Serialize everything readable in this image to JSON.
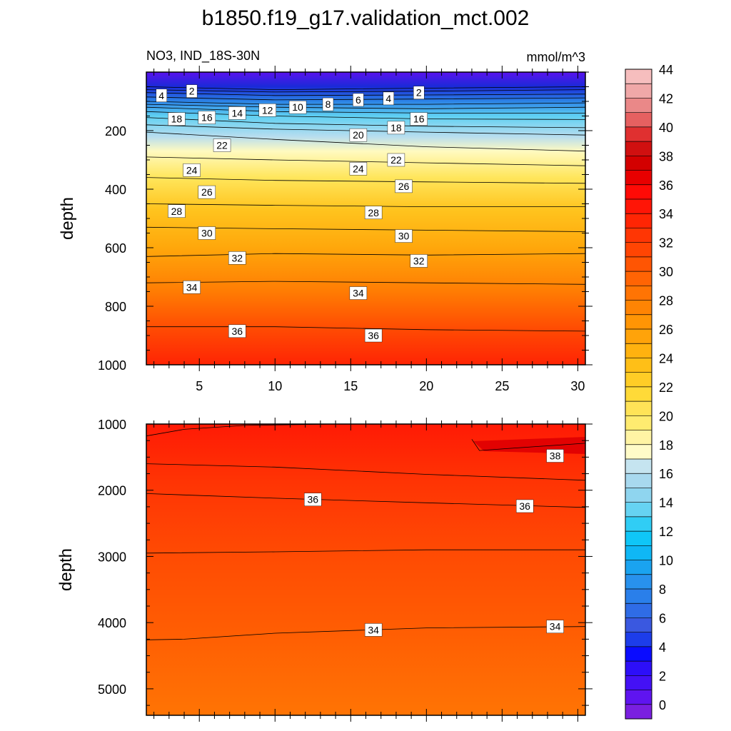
{
  "figure": {
    "title": "b1850.f19_g17.validation_mct.002",
    "subtitle_left": "NO3, IND_18S-30N",
    "subtitle_right": "mmol/m^3"
  },
  "chart_data": [
    {
      "type": "heatmap",
      "panel": "upper",
      "ylabel": "depth",
      "xlim": [
        1.5,
        30.5
      ],
      "ylim": [
        1000,
        0
      ],
      "xticks": [
        5,
        10,
        15,
        20,
        25,
        30
      ],
      "xtick_labels": [
        "5",
        "10",
        "15",
        "20",
        "25",
        "30"
      ],
      "yticks": [
        200,
        400,
        600,
        800,
        1000
      ],
      "ytick_labels": [
        "200",
        "400",
        "600",
        "800",
        "1000"
      ],
      "contour_lines": [
        {
          "level": 2,
          "points": [
            [
              1.5,
              50
            ],
            [
              10,
              60
            ],
            [
              20,
              55
            ],
            [
              30.5,
              50
            ]
          ]
        },
        {
          "level": 4,
          "points": [
            [
              1.5,
              60
            ],
            [
              10,
              68
            ],
            [
              20,
              65
            ],
            [
              30.5,
              60
            ]
          ]
        },
        {
          "level": 6,
          "points": [
            [
              1.5,
              70
            ],
            [
              10,
              80
            ],
            [
              20,
              78
            ],
            [
              30.5,
              75
            ]
          ]
        },
        {
          "level": 8,
          "points": [
            [
              1.5,
              85
            ],
            [
              10,
              95
            ],
            [
              20,
              92
            ],
            [
              30.5,
              88
            ]
          ]
        },
        {
          "level": 10,
          "points": [
            [
              1.5,
              100
            ],
            [
              10,
              110
            ],
            [
              20,
              110
            ],
            [
              30.5,
              105
            ]
          ]
        },
        {
          "level": 12,
          "points": [
            [
              1.5,
              110
            ],
            [
              10,
              120
            ],
            [
              20,
              125
            ],
            [
              30.5,
              120
            ]
          ]
        },
        {
          "level": 14,
          "points": [
            [
              1.5,
              120
            ],
            [
              10,
              135
            ],
            [
              20,
              140
            ],
            [
              30.5,
              140
            ]
          ]
        },
        {
          "level": 16,
          "points": [
            [
              1.5,
              135
            ],
            [
              10,
              150
            ],
            [
              20,
              160
            ],
            [
              30.5,
              162
            ]
          ]
        },
        {
          "level": 18,
          "points": [
            [
              1.5,
              155
            ],
            [
              10,
              175
            ],
            [
              20,
              185
            ],
            [
              30.5,
              190
            ]
          ]
        },
        {
          "level": 20,
          "points": [
            [
              1.5,
              180
            ],
            [
              10,
              195
            ],
            [
              20,
              205
            ],
            [
              30.5,
              215
            ]
          ]
        },
        {
          "level": 22,
          "points": [
            [
              1.5,
              205
            ],
            [
              10,
              230
            ],
            [
              20,
              255
            ],
            [
              30.5,
              270
            ]
          ]
        },
        {
          "level": 24,
          "points": [
            [
              1.5,
              290
            ],
            [
              10,
              300
            ],
            [
              20,
              310
            ],
            [
              30.5,
              320
            ]
          ]
        },
        {
          "level": 26,
          "points": [
            [
              1.5,
              360
            ],
            [
              10,
              370
            ],
            [
              20,
              375
            ],
            [
              30.5,
              380
            ]
          ]
        },
        {
          "level": 28,
          "points": [
            [
              1.5,
              450
            ],
            [
              10,
              455
            ],
            [
              20,
              460
            ],
            [
              30.5,
              460
            ]
          ]
        },
        {
          "level": 30,
          "points": [
            [
              1.5,
              530
            ],
            [
              10,
              535
            ],
            [
              20,
              540
            ],
            [
              30.5,
              545
            ]
          ]
        },
        {
          "level": 32,
          "points": [
            [
              1.5,
              630
            ],
            [
              10,
              620
            ],
            [
              20,
              625
            ],
            [
              30.5,
              620
            ]
          ]
        },
        {
          "level": 34,
          "points": [
            [
              1.5,
              720
            ],
            [
              10,
              715
            ],
            [
              20,
              720
            ],
            [
              30.5,
              725
            ]
          ]
        },
        {
          "level": 36,
          "points": [
            [
              1.5,
              870
            ],
            [
              10,
              870
            ],
            [
              20,
              880
            ],
            [
              30.5,
              885
            ]
          ]
        }
      ],
      "contour_labels": [
        {
          "text": "4",
          "x": 2.5,
          "y": 80
        },
        {
          "text": "2",
          "x": 4.5,
          "y": 65
        },
        {
          "text": "6",
          "x": 15.5,
          "y": 95
        },
        {
          "text": "4",
          "x": 17.5,
          "y": 90
        },
        {
          "text": "2",
          "x": 19.5,
          "y": 70
        },
        {
          "text": "8",
          "x": 13.5,
          "y": 110
        },
        {
          "text": "10",
          "x": 11.5,
          "y": 120
        },
        {
          "text": "12",
          "x": 9.5,
          "y": 130
        },
        {
          "text": "14",
          "x": 7.5,
          "y": 140
        },
        {
          "text": "16",
          "x": 5.5,
          "y": 155
        },
        {
          "text": "18",
          "x": 3.5,
          "y": 160
        },
        {
          "text": "16",
          "x": 19.5,
          "y": 160
        },
        {
          "text": "18",
          "x": 18,
          "y": 190
        },
        {
          "text": "20",
          "x": 15.5,
          "y": 215
        },
        {
          "text": "22",
          "x": 6.5,
          "y": 250
        },
        {
          "text": "22",
          "x": 18,
          "y": 300
        },
        {
          "text": "24",
          "x": 4.5,
          "y": 335
        },
        {
          "text": "24",
          "x": 15.5,
          "y": 330
        },
        {
          "text": "26",
          "x": 5.5,
          "y": 410
        },
        {
          "text": "26",
          "x": 18.5,
          "y": 390
        },
        {
          "text": "28",
          "x": 3.5,
          "y": 475
        },
        {
          "text": "28",
          "x": 16.5,
          "y": 480
        },
        {
          "text": "30",
          "x": 5.5,
          "y": 550
        },
        {
          "text": "30",
          "x": 18.5,
          "y": 560
        },
        {
          "text": "32",
          "x": 7.5,
          "y": 635
        },
        {
          "text": "32",
          "x": 19.5,
          "y": 645
        },
        {
          "text": "34",
          "x": 4.5,
          "y": 735
        },
        {
          "text": "34",
          "x": 15.5,
          "y": 755
        },
        {
          "text": "36",
          "x": 7.5,
          "y": 885
        },
        {
          "text": "36",
          "x": 16.5,
          "y": 900
        }
      ]
    },
    {
      "type": "heatmap",
      "panel": "lower",
      "ylabel": "depth",
      "xlim": [
        1.5,
        30.5
      ],
      "ylim": [
        5400,
        1000
      ],
      "xticks": [
        5,
        10,
        15,
        20,
        25,
        30
      ],
      "yticks": [
        1000,
        2000,
        3000,
        4000,
        5000
      ],
      "ytick_labels": [
        "1000",
        "2000",
        "3000",
        "4000",
        "5000"
      ],
      "contour_lines": [
        {
          "level": 38,
          "points": [
            [
              1.5,
              1180
            ],
            [
              4,
              1080
            ],
            [
              8,
              1020
            ],
            [
              14,
              1000
            ]
          ]
        },
        {
          "level": 38,
          "points": [
            [
              23,
              1230
            ],
            [
              23.5,
              1400
            ],
            [
              26,
              1360
            ],
            [
              30.5,
              1290
            ]
          ]
        },
        {
          "level": 37,
          "points": [
            [
              1.5,
              1600
            ],
            [
              10,
              1650
            ],
            [
              20,
              1760
            ],
            [
              30.5,
              1850
            ]
          ]
        },
        {
          "level": 36,
          "points": [
            [
              1.5,
              2050
            ],
            [
              10,
              2120
            ],
            [
              20,
              2190
            ],
            [
              30.5,
              2260
            ]
          ]
        },
        {
          "level": 35,
          "points": [
            [
              1.5,
              2950
            ],
            [
              10,
              2930
            ],
            [
              20,
              2900
            ],
            [
              30.5,
              2900
            ]
          ]
        },
        {
          "level": 34,
          "points": [
            [
              1.5,
              4260
            ],
            [
              4,
              4250
            ],
            [
              10,
              4160
            ],
            [
              20,
              4080
            ],
            [
              30.5,
              4060
            ]
          ]
        }
      ],
      "contour_labels": [
        {
          "text": "38",
          "x": 28.5,
          "y": 1480
        },
        {
          "text": "36",
          "x": 12.5,
          "y": 2140
        },
        {
          "text": "36",
          "x": 26.5,
          "y": 2240
        },
        {
          "text": "34",
          "x": 16.5,
          "y": 4110
        },
        {
          "text": "34",
          "x": 28.5,
          "y": 4060
        }
      ]
    }
  ],
  "colorbar": {
    "tick_labels": [
      "0",
      "2",
      "4",
      "6",
      "8",
      "10",
      "12",
      "14",
      "16",
      "18",
      "20",
      "22",
      "24",
      "26",
      "28",
      "30",
      "32",
      "34",
      "36",
      "38",
      "40",
      "42",
      "44"
    ],
    "colors": [
      "#7a1fe0",
      "#5f14f0",
      "#4411f5",
      "#2d0ff8",
      "#0a0cff",
      "#1d3dea",
      "#3a58e0",
      "#2f6ce6",
      "#2a7fea",
      "#2891ed",
      "#1aa3f0",
      "#0fb7f5",
      "#0fc6f7",
      "#30cdf5",
      "#66d3f2",
      "#8fd5ef",
      "#a8d9ef",
      "#c5e4f0",
      "#fffbc8",
      "#fff4a4",
      "#ffeb70",
      "#ffe357",
      "#ffda38",
      "#ffcd26",
      "#ffbf17",
      "#ffb20f",
      "#ffa30a",
      "#ff9505",
      "#ff8403",
      "#ff7404",
      "#ff6404",
      "#ff5503",
      "#ff4503",
      "#ff3604",
      "#ff2504",
      "#ff1506",
      "#ff0a06",
      "#e80000",
      "#d30000",
      "#d01010",
      "#e03030",
      "#e66060",
      "#ea8888",
      "#f0a8a8",
      "#f6bebe"
    ]
  }
}
